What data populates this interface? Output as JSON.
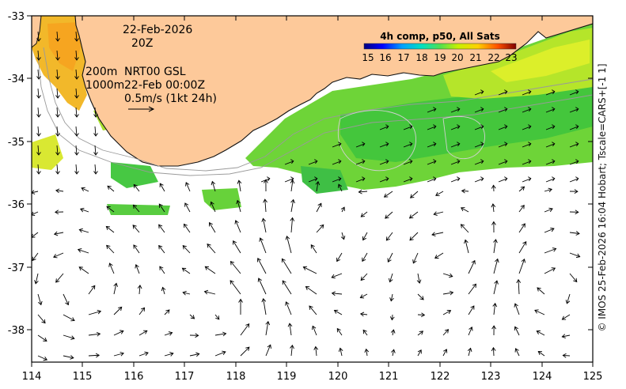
{
  "map": {
    "date": "22-Feb-2026",
    "time": "20Z",
    "depth_line1": "200m",
    "depth_line2": "1000m",
    "product": "NRT00 GSL",
    "product_time": "22-Feb 00:00Z",
    "scale_label": "0.5m/s (1kt 24h)",
    "colorbar_title": "4h comp, p50, All Sats",
    "colorbar_ticks": [
      "15",
      "16",
      "17",
      "18",
      "19",
      "20",
      "21",
      "22",
      "23"
    ],
    "credit": "© IMOS 25-Feb-2026 16:04 Hobart; Tscale=CARS+[-1 1]"
  },
  "axes": {
    "lat_labels": [
      "-33",
      "-34",
      "-35",
      "-36",
      "-37",
      "-38"
    ],
    "lon_labels": [
      "114",
      "115",
      "116",
      "117",
      "118",
      "119",
      "120",
      "121",
      "122",
      "123",
      "124",
      "125"
    ]
  },
  "colors": {
    "land": "#fdc99a",
    "coastline": "#111111",
    "isobath": "#9a9a9a",
    "ocean": "#ffffff",
    "arrow": "#000000"
  }
}
